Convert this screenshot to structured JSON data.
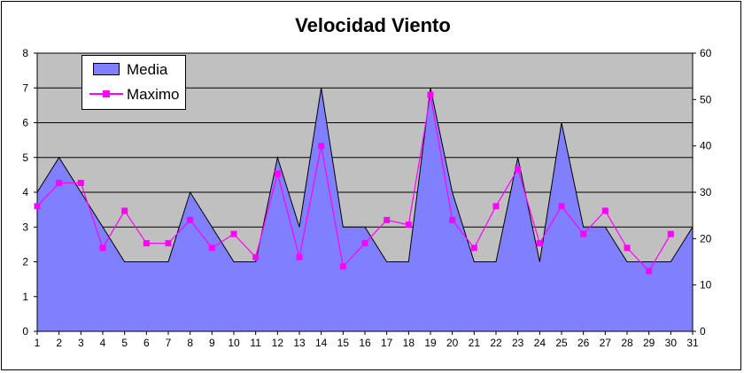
{
  "chart_data": {
    "type": "area",
    "title": "Velocidad Viento",
    "x": [
      1,
      2,
      3,
      4,
      5,
      6,
      7,
      8,
      9,
      10,
      11,
      12,
      13,
      14,
      15,
      16,
      17,
      18,
      19,
      20,
      21,
      22,
      23,
      24,
      25,
      26,
      27,
      28,
      29,
      30,
      31
    ],
    "series": [
      {
        "name": "Media",
        "type": "area",
        "axis": "left",
        "color": "#8080ff",
        "values": [
          4,
          5,
          4,
          3,
          2,
          2,
          2,
          4,
          3,
          2,
          2,
          5,
          3,
          7,
          3,
          3,
          2,
          2,
          7,
          4,
          2,
          2,
          5,
          2,
          6,
          3,
          3,
          2,
          2,
          2,
          3
        ]
      },
      {
        "name": "Maximo",
        "type": "line",
        "axis": "right",
        "color": "#ff00ff",
        "values": [
          27,
          32,
          32,
          18,
          26,
          19,
          19,
          24,
          18,
          21,
          16,
          34,
          16,
          40,
          14,
          19,
          24,
          23,
          51,
          24,
          18,
          27,
          35,
          19,
          27,
          21,
          26,
          18,
          13,
          21,
          null
        ]
      }
    ],
    "y_left": {
      "min": 0,
      "max": 8,
      "ticks": [
        0,
        1,
        2,
        3,
        4,
        5,
        6,
        7,
        8
      ]
    },
    "y_right": {
      "min": 0,
      "max": 60,
      "ticks": [
        0,
        10,
        20,
        30,
        40,
        50,
        60
      ]
    },
    "grid": "horizontal",
    "legend_position": "top-left",
    "plot_background": "#c0c0c0"
  }
}
